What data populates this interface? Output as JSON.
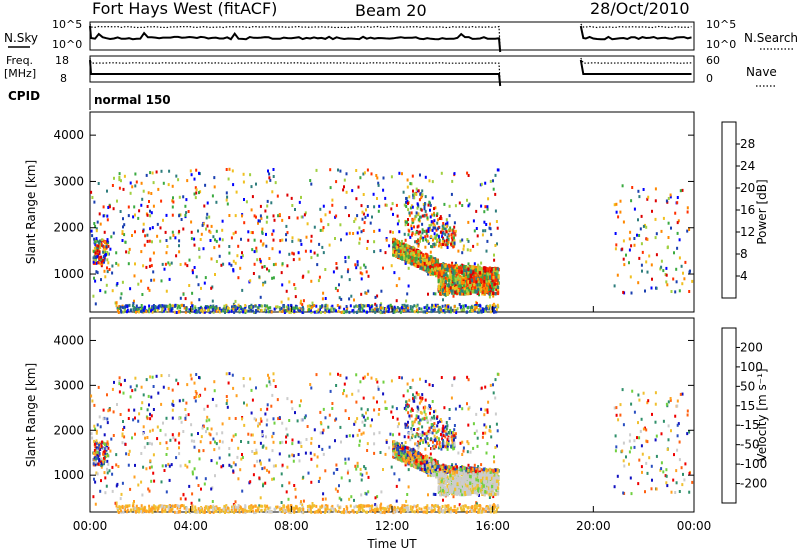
{
  "header": {
    "title": "Fort Hays West (fitACF)",
    "beam": "Beam 20",
    "date": "28/Oct/2010"
  },
  "status_panels": {
    "nsky": {
      "label": "N.Sky",
      "tick_top": "10^5",
      "tick_bottom": "10^0",
      "right_label": "N.Search",
      "right_tick_top": "10^5",
      "right_tick_bottom": "10^0"
    },
    "freq": {
      "label_line1": "Freq.",
      "label_line2": "[MHz]",
      "tick_top": "18",
      "tick_bottom": "8",
      "right_label": "Nave",
      "right_tick_top": "60",
      "right_tick_bottom": "0"
    },
    "cpid": {
      "label": "CPID",
      "value": "normal 150"
    }
  },
  "chart_data": [
    {
      "type": "heatmap",
      "name": "power",
      "ylabel": "Slant Range [km]",
      "xlabel": "",
      "ylim": [
        180,
        4500
      ],
      "xlim": [
        0,
        24
      ],
      "yticks": [
        1000,
        2000,
        3000,
        4000
      ],
      "colorbar": {
        "label": "Power [dB]",
        "ticks": [
          4,
          8,
          12,
          16,
          20,
          24,
          28
        ],
        "range": [
          0,
          32
        ],
        "colors": [
          "#0000ff",
          "#1a3fb0",
          "#2e7d7d",
          "#3aaa40",
          "#a0d040",
          "#f0c020",
          "#ff8800",
          "#ff3000",
          "#dd0000"
        ]
      },
      "data_gaps_hours": [
        [
          16.3,
          19.5
        ]
      ]
    },
    {
      "type": "heatmap",
      "name": "velocity",
      "ylabel": "Slant Range [km]",
      "xlabel": "Time UT",
      "ylim": [
        180,
        4500
      ],
      "xlim": [
        0,
        24
      ],
      "yticks": [
        1000,
        2000,
        3000,
        4000
      ],
      "xticks": [
        "00:00",
        "04:00",
        "08:00",
        "12:00",
        "16:00",
        "20:00",
        "00:00"
      ],
      "colorbar": {
        "label": "Velocity [m s⁻¹]",
        "ticks": [
          "200",
          "100",
          "50",
          "15",
          "-15",
          "-50",
          "-100",
          "-200"
        ],
        "colors": [
          "#1010c0",
          "#2a4fc0",
          "#2f8f6a",
          "#70d040",
          "#cccccc",
          "#f0c030",
          "#ffa020",
          "#ff6010",
          "#ee0000"
        ]
      },
      "data_gaps_hours": [
        [
          16.3,
          19.5
        ]
      ]
    }
  ]
}
